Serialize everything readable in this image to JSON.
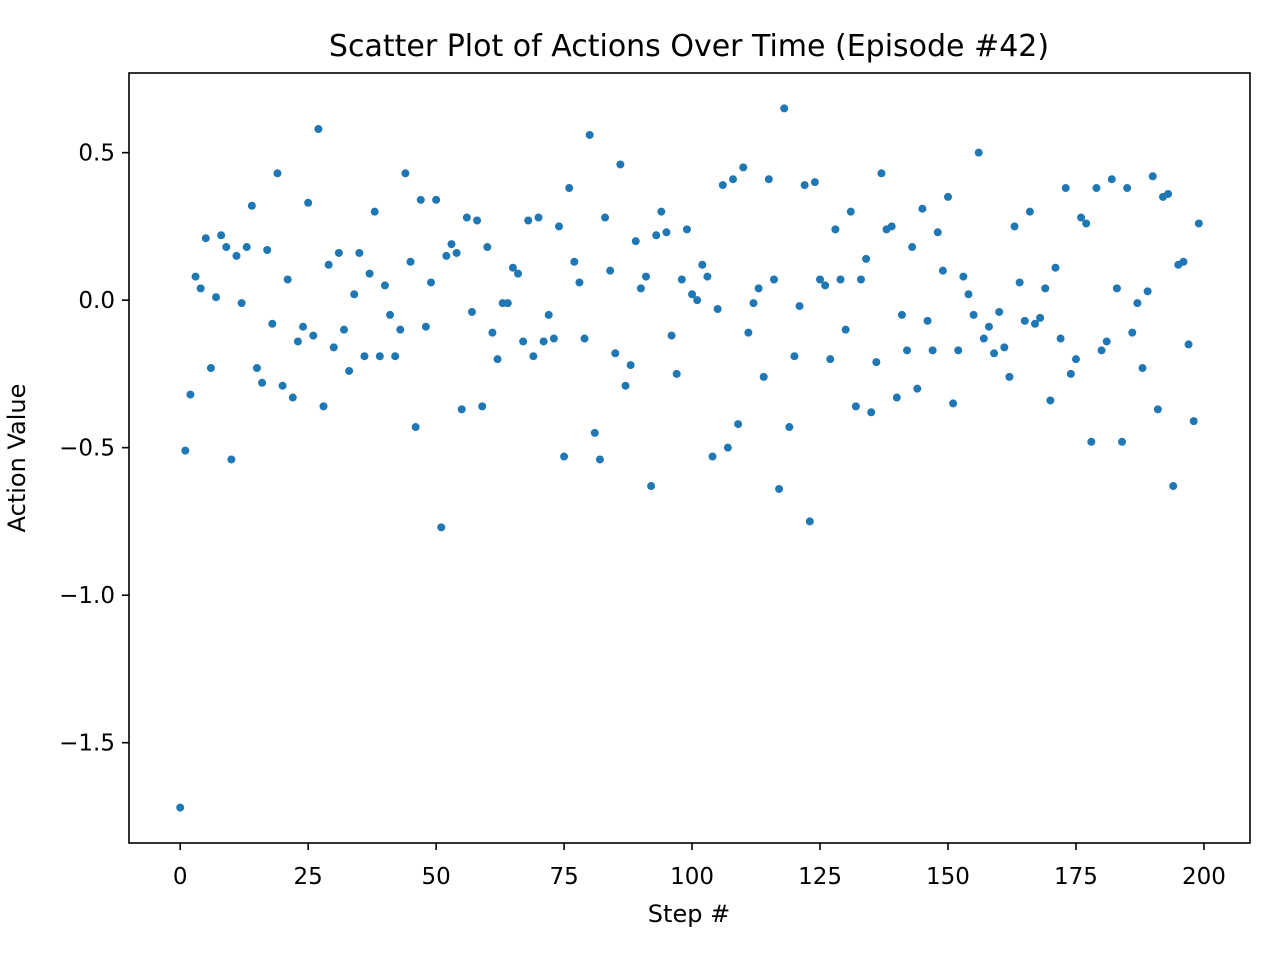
{
  "chart_data": {
    "type": "scatter",
    "title": "Scatter Plot of Actions Over Time (Episode #42)",
    "xlabel": "Step #",
    "ylabel": "Action Value",
    "xlim": [
      -10,
      209
    ],
    "ylim": [
      -1.84,
      0.77
    ],
    "xticks": [
      0,
      25,
      50,
      75,
      100,
      125,
      150,
      175,
      200
    ],
    "xtick_labels": [
      "0",
      "25",
      "50",
      "75",
      "100",
      "125",
      "150",
      "175",
      "200"
    ],
    "yticks": [
      -1.5,
      -1.0,
      -0.5,
      0.0,
      0.5
    ],
    "ytick_labels": [
      "−1.5",
      "−1.0",
      "−0.5",
      "0.0",
      "0.5"
    ],
    "grid": false,
    "marker_color": "#1f77b4",
    "series": [
      {
        "x": [
          0,
          1,
          2,
          3,
          4,
          5,
          6,
          7,
          8,
          9,
          10,
          11,
          12,
          13,
          14,
          15,
          16,
          17,
          18,
          19,
          20,
          21,
          22,
          23,
          24,
          25,
          26,
          27,
          28,
          29,
          30,
          31,
          32,
          33,
          34,
          35,
          36,
          37,
          38,
          39,
          40,
          41,
          42,
          43,
          44,
          45,
          46,
          47,
          48,
          49,
          50,
          51,
          52,
          53,
          54,
          55,
          56,
          57,
          58,
          59,
          60,
          61,
          62,
          63,
          64,
          65,
          66,
          67,
          68,
          69,
          70,
          71,
          72,
          73,
          74,
          75,
          76,
          77,
          78,
          79,
          80,
          81,
          82,
          83,
          84,
          85,
          86,
          87,
          88,
          89,
          90,
          91,
          92,
          93,
          94,
          95,
          96,
          97,
          98,
          99,
          100,
          101,
          102,
          103,
          104,
          105,
          106,
          107,
          108,
          109,
          110,
          111,
          112,
          113,
          114,
          115,
          116,
          117,
          118,
          119,
          120,
          121,
          122,
          123,
          124,
          125,
          126,
          127,
          128,
          129,
          130,
          131,
          132,
          133,
          134,
          135,
          136,
          137,
          138,
          139,
          140,
          141,
          142,
          143,
          144,
          145,
          146,
          147,
          148,
          149,
          150,
          151,
          152,
          153,
          154,
          155,
          156,
          157,
          158,
          159,
          160,
          161,
          162,
          163,
          164,
          165,
          166,
          167,
          168,
          169,
          170,
          171,
          172,
          173,
          174,
          175,
          176,
          177,
          178,
          179,
          180,
          181,
          182,
          183,
          184,
          185,
          186,
          187,
          188,
          189,
          190,
          191,
          192,
          193,
          194,
          195,
          196,
          197,
          198,
          199
        ],
        "y": [
          -1.72,
          -0.51,
          -0.32,
          0.08,
          0.04,
          0.21,
          -0.23,
          0.01,
          0.22,
          0.18,
          -0.54,
          0.15,
          -0.01,
          0.18,
          0.32,
          -0.23,
          -0.28,
          0.17,
          -0.08,
          0.43,
          -0.29,
          0.07,
          -0.33,
          -0.14,
          -0.09,
          0.33,
          -0.12,
          0.58,
          -0.36,
          0.12,
          -0.16,
          0.16,
          -0.1,
          -0.24,
          0.02,
          0.16,
          -0.19,
          0.09,
          0.3,
          -0.19,
          0.05,
          -0.05,
          -0.19,
          -0.1,
          0.43,
          0.13,
          -0.43,
          0.34,
          -0.09,
          0.06,
          0.34,
          -0.77,
          0.15,
          0.19,
          0.16,
          -0.37,
          0.28,
          -0.04,
          0.27,
          -0.36,
          0.18,
          -0.11,
          -0.2,
          -0.01,
          -0.01,
          0.11,
          0.09,
          -0.14,
          0.27,
          -0.19,
          0.28,
          -0.14,
          -0.05,
          -0.13,
          0.25,
          -0.53,
          0.38,
          0.13,
          0.06,
          -0.13,
          0.56,
          -0.45,
          -0.54,
          0.28,
          0.1,
          -0.18,
          0.46,
          -0.29,
          -0.22,
          0.2,
          0.04,
          0.08,
          -0.63,
          0.22,
          0.3,
          0.23,
          -0.12,
          -0.25,
          0.07,
          0.24,
          0.02,
          0.0,
          0.12,
          0.08,
          -0.53,
          -0.03,
          0.39,
          -0.5,
          0.41,
          -0.42,
          0.45,
          -0.11,
          -0.01,
          0.04,
          -0.26,
          0.41,
          0.07,
          -0.64,
          0.65,
          -0.43,
          -0.19,
          -0.02,
          0.39,
          -0.75,
          0.4,
          0.07,
          0.05,
          -0.2,
          0.24,
          0.07,
          -0.1,
          0.3,
          -0.36,
          0.07,
          0.14,
          -0.38,
          -0.21,
          0.43,
          0.24,
          0.25,
          -0.33,
          -0.05,
          -0.17,
          0.18,
          -0.3,
          0.31,
          -0.07,
          -0.17,
          0.23,
          0.1,
          0.35,
          -0.35,
          -0.17,
          0.08,
          0.02,
          -0.05,
          0.5,
          -0.13,
          -0.09,
          -0.18,
          -0.04,
          -0.16,
          -0.26,
          0.25,
          0.06,
          -0.07,
          0.3,
          -0.08,
          -0.06,
          0.04,
          -0.34,
          0.11,
          -0.13,
          0.38,
          -0.25,
          -0.2,
          0.28,
          0.26,
          -0.48,
          0.38,
          -0.17,
          -0.14,
          0.41,
          0.04,
          -0.48,
          0.38,
          -0.11,
          -0.01,
          -0.23,
          0.03,
          0.42,
          -0.37,
          0.35,
          0.36,
          -0.63,
          0.12,
          0.13,
          -0.15,
          -0.41,
          0.26
        ]
      }
    ]
  }
}
